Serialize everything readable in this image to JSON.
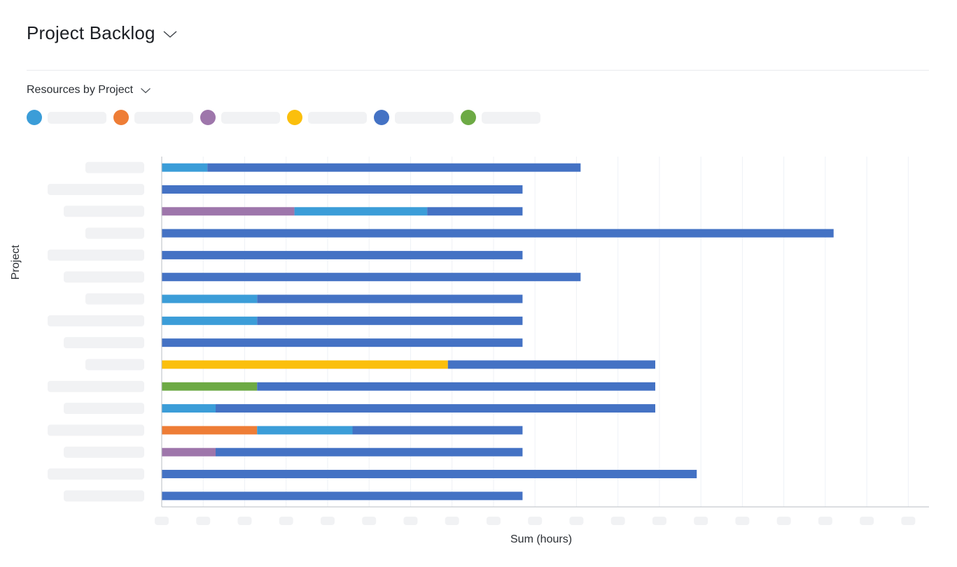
{
  "header": {
    "title": "Project Backlog"
  },
  "report": {
    "selector_label": "Resources by Project"
  },
  "colors": {
    "c1": "#3b9dd8",
    "c2": "#ee7d36",
    "c3": "#9e76ab",
    "c4": "#fbbf0c",
    "c5": "#4472c4",
    "c6": "#6daa45",
    "grid": "#eef1f6",
    "axis": "#b9bdc3",
    "placeholder": "#f1f2f4"
  },
  "legend": [
    {
      "key": "c1",
      "label": ""
    },
    {
      "key": "c2",
      "label": ""
    },
    {
      "key": "c3",
      "label": ""
    },
    {
      "key": "c4",
      "label": ""
    },
    {
      "key": "c5",
      "label": ""
    },
    {
      "key": "c6",
      "label": ""
    }
  ],
  "chart_data": {
    "type": "bar",
    "orientation": "horizontal",
    "stacked": true,
    "title": "",
    "xlabel": "Sum (hours)",
    "ylabel": "Project",
    "xlim": [
      0,
      18.5
    ],
    "grid": true,
    "legend_position": "top-left",
    "categories": [
      "",
      "",
      "",
      "",
      "",
      "",
      "",
      "",
      "",
      "",
      "",
      "",
      "",
      "",
      "",
      ""
    ],
    "series": [
      {
        "key": "c1",
        "name": "",
        "values": [
          1.1,
          0,
          3.2,
          0,
          0,
          0,
          2.3,
          2.3,
          0,
          0,
          0,
          1.3,
          2.3,
          0,
          0,
          0
        ]
      },
      {
        "key": "c2",
        "name": "",
        "values": [
          0,
          0,
          0,
          0,
          0,
          0,
          0,
          0,
          0,
          0,
          0,
          0,
          2.3,
          0,
          0,
          0
        ]
      },
      {
        "key": "c3",
        "name": "",
        "values": [
          0,
          0,
          3.2,
          0,
          0,
          0,
          0,
          0,
          0,
          0,
          0,
          0,
          0,
          1.3,
          0,
          0
        ]
      },
      {
        "key": "c4",
        "name": "",
        "values": [
          0,
          0,
          0,
          0,
          0,
          0,
          0,
          0,
          0,
          6.9,
          0,
          0,
          0,
          0,
          0,
          0
        ]
      },
      {
        "key": "c5",
        "name": "",
        "values": [
          9.0,
          8.7,
          2.3,
          16.2,
          8.7,
          10.1,
          6.4,
          6.4,
          8.7,
          5.0,
          9.6,
          10.6,
          4.1,
          7.4,
          12.9,
          8.7
        ]
      },
      {
        "key": "c6",
        "name": "",
        "values": [
          0,
          0,
          0,
          0,
          0,
          0,
          0,
          0,
          0,
          0,
          2.3,
          0,
          0,
          0,
          0,
          0
        ]
      }
    ],
    "stack_order": [
      "c3",
      "c2",
      "c4",
      "c6",
      "c1",
      "c5"
    ]
  }
}
